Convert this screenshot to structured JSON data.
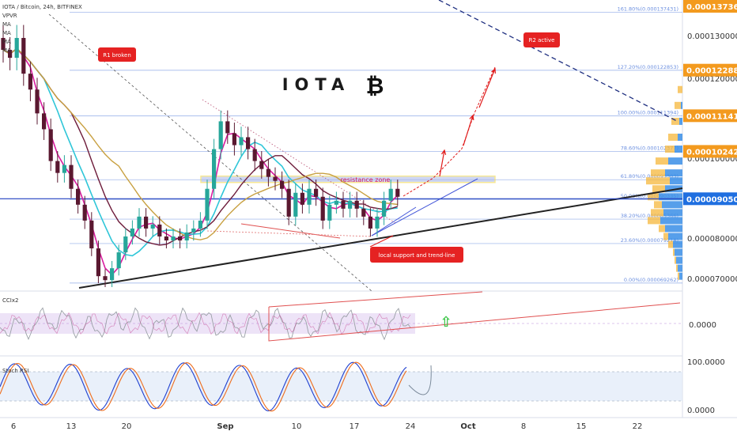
{
  "header": {
    "symbol_line": "IOTA / Bitcoin, 24h, BITFINEX",
    "indicators": [
      "VPVR",
      "MA",
      "MA",
      "MA",
      "MA"
    ]
  },
  "colors": {
    "candle_up": "#26a69a",
    "candle_down": "#5a1830",
    "ma_fast": "#d81b9e",
    "ma_mid": "#2fc6d8",
    "ma_slow": "#6d1b3a",
    "ma_long": "#c8a040",
    "fib_line": "#6b8fe0",
    "resistance_zone": "#a9b8ea",
    "trendline": "#222222",
    "arrow": "#e01a1a",
    "badge_red": "#e52222",
    "badge_blue": "#1f6fe0",
    "badge_orange": "#f39a1e",
    "vp_orange": "#f5b73b",
    "vp_blue": "#3a8ee6"
  },
  "annotations": {
    "title": "IOTA",
    "btc_symbol": "₿",
    "r1": "R1 broken",
    "r2": "R2 active",
    "resistance": "resistance zone",
    "support": "local support and trend-line"
  },
  "price_axis": {
    "ticks": [
      "0.000130000",
      "0.000120000",
      "0.000100000",
      "0.000080000",
      "0.000070000"
    ],
    "badges": [
      {
        "label": "0.000137360",
        "kind": "orange"
      },
      {
        "label": "0.000122889",
        "kind": "orange"
      },
      {
        "label": "0.000111411",
        "kind": "orange"
      },
      {
        "label": "0.000102428",
        "kind": "orange"
      },
      {
        "label": "0.000090500",
        "kind": "blue"
      }
    ]
  },
  "fib_levels": [
    {
      "label": "161.80%(0.000137431)"
    },
    {
      "label": "127.20%(0.000122853)"
    },
    {
      "label": "100.00%(0.000111394)"
    },
    {
      "label": "78.60%(0.000102377)"
    },
    {
      "label": "61.80%(0.000095303)"
    },
    {
      "label": "50.00%(0.000090335)"
    },
    {
      "label": "38.20%(0.000085366)"
    },
    {
      "label": "23.60%(0.000079218)"
    },
    {
      "label": "0.00%(0.000069262)"
    }
  ],
  "cci_panel": {
    "label": "CCIx2",
    "tick": "0.0000"
  },
  "stoch_panel": {
    "label": "Stoch RSI",
    "tick_top": "100.0000",
    "tick_bottom": "0.0000"
  },
  "time_axis": {
    "labels": [
      {
        "text": "6",
        "bold": false
      },
      {
        "text": "13",
        "bold": false
      },
      {
        "text": "20",
        "bold": false
      },
      {
        "text": "Sep",
        "bold": true
      },
      {
        "text": "10",
        "bold": false
      },
      {
        "text": "17",
        "bold": false
      },
      {
        "text": "24",
        "bold": false
      },
      {
        "text": "Oct",
        "bold": true
      },
      {
        "text": "8",
        "bold": false
      },
      {
        "text": "15",
        "bold": false
      },
      {
        "text": "22",
        "bold": false
      }
    ]
  },
  "chart_data": {
    "type": "candlestick",
    "symbol": "IOTA / Bitcoin",
    "interval": "24h",
    "exchange": "BITFINEX",
    "y_range_btc": [
      6.65e-05,
      0.00014
    ],
    "candles_close": [
      0.000128,
      0.000126,
      0.000131,
      0.000122,
      0.000118,
      0.000112,
      0.000108,
      0.0001,
      9.7e-05,
      9.9e-05,
      9.3e-05,
      8.9e-05,
      8.5e-05,
      7.8e-05,
      7.1e-05,
      7e-05,
      7.3e-05,
      7.7e-05,
      8.1e-05,
      8.3e-05,
      8.6e-05,
      8.3e-05,
      8.4e-05,
      8.1e-05,
      8e-05,
      8.1e-05,
      8e-05,
      8.2e-05,
      8.3e-05,
      8.5e-05,
      9.3e-05,
      0.000103,
      0.00011,
      0.000107,
      0.000104,
      0.000106,
      0.000103,
      0.0001,
      9.8e-05,
      9.6e-05,
      9.5e-05,
      9.3e-05,
      8.6e-05,
      9.2e-05,
      8.9e-05,
      9.3e-05,
      9.1e-05,
      8.5e-05,
      8.9e-05,
      9e-05,
      8.8e-05,
      9e-05,
      8.8e-05,
      8.6e-05,
      8.3e-05,
      8.6e-05,
      9e-05,
      9.3e-05,
      9.1e-05
    ],
    "fib_retracement": [
      {
        "ratio": "161.80%",
        "value": 0.000137431
      },
      {
        "ratio": "127.20%",
        "value": 0.000122853
      },
      {
        "ratio": "100.00%",
        "value": 0.000111394
      },
      {
        "ratio": "78.60%",
        "value": 0.000102377
      },
      {
        "ratio": "61.80%",
        "value": 9.5303e-05
      },
      {
        "ratio": "50.00%",
        "value": 9.0335e-05
      },
      {
        "ratio": "38.20%",
        "value": 8.5366e-05
      },
      {
        "ratio": "23.60%",
        "value": 7.9218e-05
      },
      {
        "ratio": "0.00%",
        "value": 6.9262e-05
      }
    ],
    "price_badges": [
      0.00013736,
      0.000122889,
      0.000111411,
      0.000102428,
      9.05e-05
    ],
    "resistance_zone": [
      9.46e-05,
      9.62e-05
    ],
    "last_price": 9.05e-05,
    "x_tick_labels": [
      "6",
      "13",
      "20",
      "Sep",
      "10",
      "17",
      "24",
      "Oct",
      "8",
      "15",
      "22"
    ],
    "cci_tick": 0,
    "stoch_rsi_ticks": [
      100,
      0
    ]
  }
}
